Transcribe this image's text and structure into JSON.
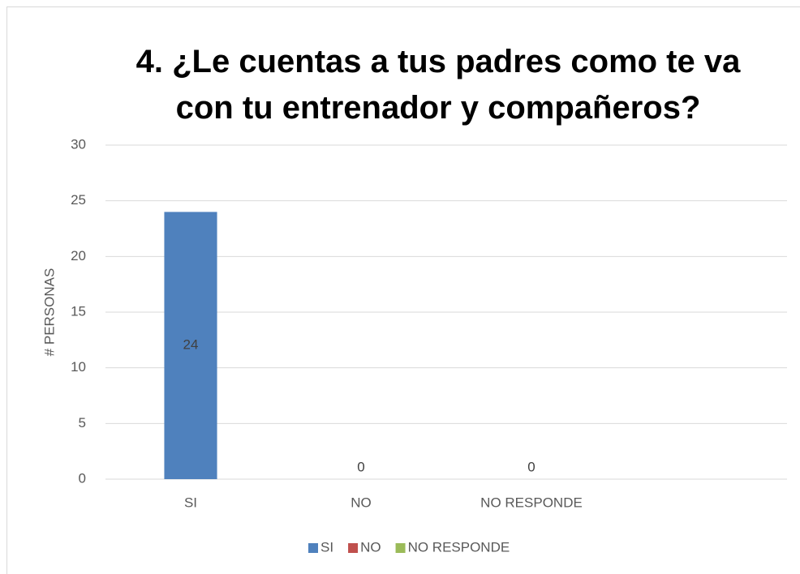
{
  "chart_data": {
    "type": "bar",
    "title": "4. ¿Le cuentas a tus padres como te va con tu entrenador y compañeros?",
    "y_label": "# PERSONAS",
    "categories": [
      "SI",
      "NO",
      "NO RESPONDE",
      null
    ],
    "values": [
      24,
      0,
      0,
      null
    ],
    "colors": [
      "#4f81bd",
      "#c0504d",
      "#9bbb59"
    ],
    "ylim": [
      0,
      30
    ],
    "yticks": [
      0,
      5,
      10,
      15,
      20,
      25,
      30
    ],
    "grid": true,
    "data_labels": true,
    "legend": "bottom"
  }
}
